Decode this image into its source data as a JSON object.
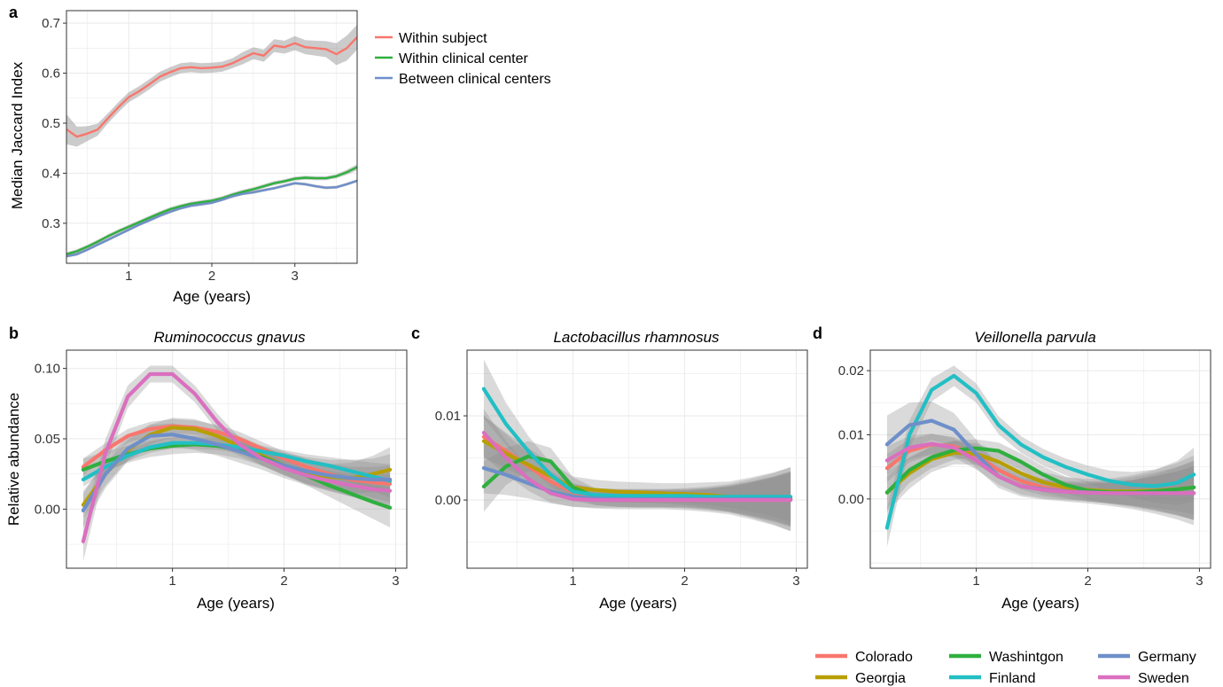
{
  "colors": {
    "Colorado": "#F8766D",
    "Georgia": "#B79F00",
    "Washintgon": "#2FAF3F",
    "Finland": "#22BFC4",
    "Germany": "#6E8FC9",
    "Sweden": "#DA6FBF",
    "Within subject": "#F8766D",
    "Within clinical center": "#2FAF3F",
    "Between clinical centers": "#6E8FC9"
  },
  "region_legend": [
    "Colorado",
    "Georgia",
    "Washintgon",
    "Finland",
    "Germany",
    "Sweden"
  ],
  "chart_data": [
    {
      "id": "a",
      "panel_label": "a",
      "type": "line",
      "title": "",
      "xlabel": "Age (years)",
      "ylabel": "Median Jaccard Index",
      "xlim": [
        0.25,
        3.75
      ],
      "ylim": [
        0.22,
        0.725
      ],
      "xticks": [
        1,
        2,
        3
      ],
      "yticks": [
        0.3,
        0.4,
        0.5,
        0.6,
        0.7
      ],
      "ytick_labels": [
        "0.3",
        "0.4",
        "0.5",
        "0.6",
        "0.7"
      ],
      "grid": true,
      "legend": "right",
      "x": [
        0.25,
        0.375,
        0.5,
        0.625,
        0.75,
        0.875,
        1.0,
        1.125,
        1.25,
        1.375,
        1.5,
        1.625,
        1.75,
        1.875,
        2.0,
        2.125,
        2.25,
        2.375,
        2.5,
        2.625,
        2.75,
        2.875,
        3.0,
        3.125,
        3.25,
        3.375,
        3.5,
        3.625,
        3.75
      ],
      "series": [
        {
          "name": "Within subject",
          "values": [
            0.488,
            0.473,
            0.479,
            0.487,
            0.51,
            0.532,
            0.552,
            0.564,
            0.578,
            0.593,
            0.602,
            0.61,
            0.612,
            0.61,
            0.611,
            0.613,
            0.62,
            0.63,
            0.64,
            0.635,
            0.655,
            0.652,
            0.66,
            0.652,
            0.65,
            0.648,
            0.638,
            0.65,
            0.672
          ],
          "ci": [
            0.03,
            0.02,
            0.015,
            0.012,
            0.01,
            0.01,
            0.01,
            0.01,
            0.01,
            0.01,
            0.01,
            0.01,
            0.01,
            0.01,
            0.01,
            0.01,
            0.01,
            0.012,
            0.012,
            0.012,
            0.013,
            0.013,
            0.014,
            0.014,
            0.015,
            0.016,
            0.022,
            0.025,
            0.025
          ]
        },
        {
          "name": "Within clinical center",
          "values": [
            0.238,
            0.244,
            0.253,
            0.263,
            0.274,
            0.284,
            0.293,
            0.302,
            0.311,
            0.32,
            0.328,
            0.334,
            0.339,
            0.342,
            0.345,
            0.35,
            0.357,
            0.363,
            0.368,
            0.374,
            0.38,
            0.384,
            0.389,
            0.391,
            0.39,
            0.39,
            0.394,
            0.402,
            0.412
          ],
          "ci": [
            0.004,
            0.004,
            0.004,
            0.004,
            0.004,
            0.004,
            0.004,
            0.004,
            0.004,
            0.004,
            0.004,
            0.004,
            0.004,
            0.004,
            0.004,
            0.004,
            0.004,
            0.004,
            0.004,
            0.004,
            0.004,
            0.004,
            0.004,
            0.004,
            0.004,
            0.004,
            0.004,
            0.005,
            0.006
          ]
        },
        {
          "name": "Between clinical centers",
          "values": [
            0.234,
            0.238,
            0.247,
            0.257,
            0.267,
            0.277,
            0.287,
            0.297,
            0.306,
            0.315,
            0.323,
            0.33,
            0.335,
            0.338,
            0.341,
            0.347,
            0.354,
            0.359,
            0.362,
            0.366,
            0.37,
            0.375,
            0.38,
            0.378,
            0.374,
            0.371,
            0.372,
            0.378,
            0.385
          ],
          "ci": [
            0.003,
            0.003,
            0.003,
            0.003,
            0.003,
            0.003,
            0.003,
            0.003,
            0.003,
            0.003,
            0.003,
            0.003,
            0.003,
            0.003,
            0.003,
            0.003,
            0.003,
            0.003,
            0.003,
            0.003,
            0.003,
            0.003,
            0.003,
            0.003,
            0.003,
            0.003,
            0.003,
            0.003,
            0.003
          ]
        }
      ]
    },
    {
      "id": "b",
      "panel_label": "b",
      "type": "line",
      "title": "Ruminococcus gnavus",
      "xlabel": "Age (years)",
      "ylabel": "Relative abundance",
      "xlim": [
        0.05,
        3.1
      ],
      "ylim": [
        -0.042,
        0.113
      ],
      "xticks": [
        1,
        2,
        3
      ],
      "yticks": [
        0.0,
        0.05,
        0.1
      ],
      "ytick_labels": [
        "0.00",
        "0.05",
        "0.10"
      ],
      "grid": true,
      "x": [
        0.2,
        0.4,
        0.6,
        0.8,
        1.0,
        1.2,
        1.4,
        1.6,
        1.8,
        2.0,
        2.2,
        2.4,
        2.6,
        2.8,
        2.95
      ],
      "series": [
        {
          "name": "Colorado",
          "values": [
            0.03,
            0.042,
            0.052,
            0.057,
            0.059,
            0.058,
            0.055,
            0.05,
            0.043,
            0.036,
            0.03,
            0.025,
            0.021,
            0.019,
            0.018
          ],
          "ci": [
            0.006,
            0.005,
            0.005,
            0.005,
            0.005,
            0.005,
            0.005,
            0.005,
            0.005,
            0.005,
            0.006,
            0.007,
            0.009,
            0.011,
            0.013
          ]
        },
        {
          "name": "Georgia",
          "values": [
            0.003,
            0.025,
            0.042,
            0.053,
            0.058,
            0.057,
            0.052,
            0.045,
            0.038,
            0.031,
            0.026,
            0.023,
            0.022,
            0.025,
            0.028
          ],
          "ci": [
            0.01,
            0.008,
            0.007,
            0.007,
            0.007,
            0.007,
            0.007,
            0.007,
            0.007,
            0.007,
            0.008,
            0.009,
            0.011,
            0.013,
            0.016
          ]
        },
        {
          "name": "Washintgon",
          "values": [
            0.028,
            0.034,
            0.039,
            0.043,
            0.045,
            0.046,
            0.045,
            0.042,
            0.037,
            0.031,
            0.024,
            0.017,
            0.011,
            0.005,
            0.001
          ],
          "ci": [
            0.008,
            0.007,
            0.006,
            0.006,
            0.006,
            0.006,
            0.006,
            0.006,
            0.006,
            0.006,
            0.007,
            0.008,
            0.01,
            0.012,
            0.014
          ]
        },
        {
          "name": "Finland",
          "values": [
            0.021,
            0.03,
            0.038,
            0.044,
            0.047,
            0.047,
            0.046,
            0.044,
            0.041,
            0.038,
            0.034,
            0.031,
            0.027,
            0.023,
            0.02
          ],
          "ci": [
            0.005,
            0.004,
            0.004,
            0.004,
            0.004,
            0.004,
            0.004,
            0.004,
            0.004,
            0.004,
            0.005,
            0.006,
            0.008,
            0.01,
            0.012
          ]
        },
        {
          "name": "Germany",
          "values": [
            -0.001,
            0.025,
            0.043,
            0.052,
            0.053,
            0.05,
            0.046,
            0.041,
            0.036,
            0.031,
            0.027,
            0.024,
            0.022,
            0.021,
            0.021
          ],
          "ci": [
            0.012,
            0.01,
            0.009,
            0.008,
            0.008,
            0.008,
            0.008,
            0.008,
            0.008,
            0.009,
            0.01,
            0.011,
            0.013,
            0.015,
            0.018
          ]
        },
        {
          "name": "Sweden",
          "values": [
            -0.023,
            0.04,
            0.08,
            0.096,
            0.096,
            0.082,
            0.062,
            0.046,
            0.036,
            0.029,
            0.024,
            0.02,
            0.017,
            0.014,
            0.013
          ],
          "ci": [
            0.014,
            0.01,
            0.008,
            0.006,
            0.006,
            0.006,
            0.006,
            0.005,
            0.005,
            0.005,
            0.006,
            0.007,
            0.008,
            0.01,
            0.012
          ]
        }
      ]
    },
    {
      "id": "c",
      "panel_label": "c",
      "type": "line",
      "title": "Lactobacillus rhamnosus",
      "xlabel": "Age (years)",
      "ylabel": "",
      "xlim": [
        0.05,
        3.1
      ],
      "ylim": [
        -0.0081,
        0.0178
      ],
      "xticks": [
        1,
        2,
        3
      ],
      "yticks": [
        0.0,
        0.01
      ],
      "ytick_labels": [
        "0.00",
        "0.01"
      ],
      "grid": true,
      "x": [
        0.2,
        0.4,
        0.6,
        0.8,
        1.0,
        1.2,
        1.4,
        1.6,
        1.8,
        2.0,
        2.2,
        2.4,
        2.6,
        2.8,
        2.95
      ],
      "series": [
        {
          "name": "Colorado",
          "values": [
            0.0075,
            0.0058,
            0.004,
            0.0022,
            0.0009,
            0.0004,
            0.0002,
            0.0001,
            0.0001,
            0.0001,
            0.0001,
            0.0001,
            0.0001,
            0.0001,
            0.0001
          ],
          "ci": [
            0.0025,
            0.002,
            0.0015,
            0.0012,
            0.001,
            0.001,
            0.001,
            0.001,
            0.001,
            0.001,
            0.0012,
            0.0015,
            0.002,
            0.0026,
            0.0032
          ]
        },
        {
          "name": "Georgia",
          "values": [
            0.007,
            0.0055,
            0.0042,
            0.0028,
            0.0015,
            0.0012,
            0.001,
            0.0009,
            0.0008,
            0.0007,
            0.0006,
            0.0004,
            0.0003,
            0.0002,
            0.0001
          ],
          "ci": [
            0.003,
            0.0025,
            0.002,
            0.0016,
            0.0013,
            0.0012,
            0.0012,
            0.0012,
            0.0012,
            0.0013,
            0.0015,
            0.0018,
            0.0024,
            0.0031,
            0.0038
          ]
        },
        {
          "name": "Washintgon",
          "values": [
            0.0016,
            0.004,
            0.0052,
            0.0046,
            0.0015,
            0.0004,
            0.0002,
            0.0002,
            0.0002,
            0.0002,
            0.0002,
            0.0002,
            0.0002,
            0.0002,
            0.0002
          ],
          "ci": [
            0.003,
            0.0022,
            0.0018,
            0.0016,
            0.0012,
            0.001,
            0.001,
            0.001,
            0.001,
            0.001,
            0.0012,
            0.0015,
            0.002,
            0.0026,
            0.0032
          ]
        },
        {
          "name": "Finland",
          "values": [
            0.0132,
            0.009,
            0.0058,
            0.003,
            0.001,
            0.0006,
            0.0005,
            0.0005,
            0.0005,
            0.0005,
            0.0004,
            0.0004,
            0.0004,
            0.0004,
            0.0004
          ],
          "ci": [
            0.0035,
            0.0025,
            0.0018,
            0.0014,
            0.001,
            0.0008,
            0.0008,
            0.0008,
            0.0008,
            0.0008,
            0.001,
            0.0013,
            0.0018,
            0.0024,
            0.003
          ]
        },
        {
          "name": "Germany",
          "values": [
            0.0038,
            0.003,
            0.002,
            0.001,
            0.0004,
            0.0002,
            0.0001,
            0.0001,
            0.0001,
            0.0001,
            0.0001,
            0.0001,
            0.0001,
            0.0001,
            0.0001
          ],
          "ci": [
            0.003,
            0.0024,
            0.0018,
            0.0014,
            0.0012,
            0.0012,
            0.0012,
            0.0012,
            0.0012,
            0.0013,
            0.0015,
            0.0018,
            0.0024,
            0.0031,
            0.0038
          ]
        },
        {
          "name": "Sweden",
          "values": [
            0.008,
            0.005,
            0.0025,
            0.0008,
            0.0001,
            0.0,
            0.0,
            0.0,
            0.0,
            0.0,
            0.0,
            0.0,
            0.0,
            0.0,
            0.0
          ],
          "ci": [
            0.0028,
            0.002,
            0.0014,
            0.0011,
            0.0009,
            0.0009,
            0.0009,
            0.0009,
            0.0009,
            0.001,
            0.0012,
            0.0015,
            0.002,
            0.0026,
            0.0032
          ]
        }
      ]
    },
    {
      "id": "d",
      "panel_label": "d",
      "type": "line",
      "title": "Veillonella parvula",
      "xlabel": "Age (years)",
      "ylabel": "",
      "xlim": [
        0.05,
        3.1
      ],
      "ylim": [
        -0.0108,
        0.0232
      ],
      "xticks": [
        1,
        2,
        3
      ],
      "yticks": [
        0.0,
        0.01,
        0.02
      ],
      "ytick_labels": [
        "0.00",
        "0.01",
        "0.02"
      ],
      "grid": true,
      "x": [
        0.2,
        0.4,
        0.6,
        0.8,
        1.0,
        1.2,
        1.4,
        1.6,
        1.8,
        2.0,
        2.2,
        2.4,
        2.6,
        2.8,
        2.95
      ],
      "series": [
        {
          "name": "Colorado",
          "values": [
            0.0048,
            0.0075,
            0.0085,
            0.0082,
            0.0068,
            0.0045,
            0.0028,
            0.0018,
            0.0013,
            0.001,
            0.0009,
            0.0009,
            0.0009,
            0.0009,
            0.0009
          ],
          "ci": [
            0.0022,
            0.0018,
            0.0016,
            0.0015,
            0.0014,
            0.0013,
            0.0013,
            0.0013,
            0.0013,
            0.0014,
            0.0016,
            0.002,
            0.0026,
            0.0034,
            0.0042
          ]
        },
        {
          "name": "Georgia",
          "values": [
            0.001,
            0.004,
            0.0062,
            0.0072,
            0.007,
            0.0058,
            0.004,
            0.0026,
            0.0018,
            0.0014,
            0.0012,
            0.0012,
            0.0013,
            0.0015,
            0.0018
          ],
          "ci": [
            0.003,
            0.0024,
            0.002,
            0.0018,
            0.0017,
            0.0016,
            0.0016,
            0.0016,
            0.0016,
            0.0017,
            0.002,
            0.0025,
            0.0032,
            0.0041,
            0.005
          ]
        },
        {
          "name": "Washintgon",
          "values": [
            0.001,
            0.0045,
            0.0065,
            0.0076,
            0.0079,
            0.0075,
            0.0058,
            0.0038,
            0.0022,
            0.0013,
            0.001,
            0.001,
            0.0012,
            0.0015,
            0.0018
          ],
          "ci": [
            0.0025,
            0.002,
            0.0017,
            0.0015,
            0.0014,
            0.0013,
            0.0013,
            0.0013,
            0.0013,
            0.0014,
            0.0016,
            0.002,
            0.0026,
            0.0034,
            0.0042
          ]
        },
        {
          "name": "Finland",
          "values": [
            -0.0045,
            0.01,
            0.017,
            0.0192,
            0.0165,
            0.0115,
            0.0085,
            0.0065,
            0.005,
            0.0038,
            0.0028,
            0.0022,
            0.002,
            0.0025,
            0.0038
          ],
          "ci": [
            0.003,
            0.0022,
            0.0018,
            0.0016,
            0.0015,
            0.0014,
            0.0013,
            0.0013,
            0.0013,
            0.0014,
            0.0016,
            0.002,
            0.0026,
            0.0034,
            0.0042
          ]
        },
        {
          "name": "Germany",
          "values": [
            0.0085,
            0.0115,
            0.0122,
            0.0108,
            0.007,
            0.0035,
            0.002,
            0.0015,
            0.0012,
            0.001,
            0.0009,
            0.0009,
            0.0009,
            0.0009,
            0.0009
          ],
          "ci": [
            0.0045,
            0.0035,
            0.003,
            0.0026,
            0.0022,
            0.0018,
            0.0016,
            0.0016,
            0.0016,
            0.0017,
            0.002,
            0.0025,
            0.0032,
            0.0041,
            0.005
          ]
        },
        {
          "name": "Sweden",
          "values": [
            0.006,
            0.008,
            0.0086,
            0.008,
            0.006,
            0.0035,
            0.002,
            0.0014,
            0.0011,
            0.001,
            0.0009,
            0.0009,
            0.0009,
            0.0009,
            0.0009
          ],
          "ci": [
            0.0022,
            0.0018,
            0.0016,
            0.0015,
            0.0014,
            0.0013,
            0.0013,
            0.0013,
            0.0013,
            0.0014,
            0.0016,
            0.002,
            0.0026,
            0.0034,
            0.0042
          ]
        }
      ]
    }
  ]
}
